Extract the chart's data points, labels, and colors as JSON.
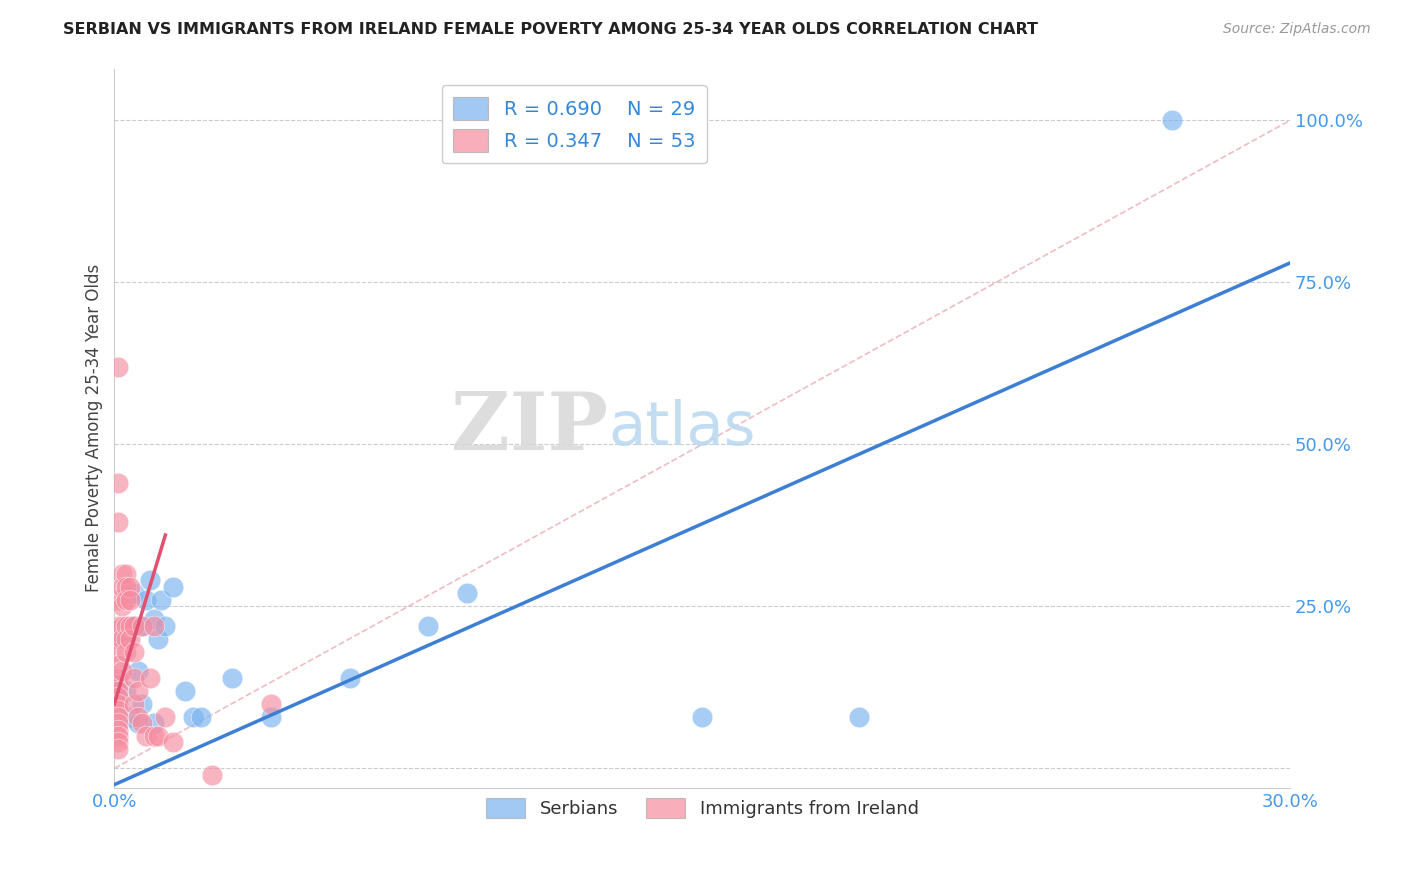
{
  "title": "SERBIAN VS IMMIGRANTS FROM IRELAND FEMALE POVERTY AMONG 25-34 YEAR OLDS CORRELATION CHART",
  "source": "Source: ZipAtlas.com",
  "ylabel": "Female Poverty Among 25-34 Year Olds",
  "xlim": [
    0.0,
    0.3
  ],
  "ylim": [
    -0.03,
    1.08
  ],
  "x_ticks": [
    0.0,
    0.05,
    0.1,
    0.15,
    0.2,
    0.25,
    0.3
  ],
  "x_tick_labels": [
    "0.0%",
    "",
    "",
    "",
    "",
    "",
    "30.0%"
  ],
  "y_ticks": [
    0.0,
    0.25,
    0.5,
    0.75,
    1.0
  ],
  "y_tick_labels": [
    "",
    "25.0%",
    "50.0%",
    "75.0%",
    "100.0%"
  ],
  "grid_color": "#cccccc",
  "background_color": "#ffffff",
  "legend_r1": "R = 0.690",
  "legend_n1": "N = 29",
  "legend_r2": "R = 0.347",
  "legend_n2": "N = 53",
  "blue_color": "#7ab3ef",
  "pink_color": "#f78ca0",
  "blue_scatter": [
    [
      0.001,
      0.13
    ],
    [
      0.002,
      0.2
    ],
    [
      0.003,
      0.12
    ],
    [
      0.004,
      0.08
    ],
    [
      0.005,
      0.22
    ],
    [
      0.005,
      0.27
    ],
    [
      0.006,
      0.07
    ],
    [
      0.006,
      0.15
    ],
    [
      0.007,
      0.22
    ],
    [
      0.007,
      0.1
    ],
    [
      0.008,
      0.26
    ],
    [
      0.009,
      0.29
    ],
    [
      0.01,
      0.23
    ],
    [
      0.01,
      0.07
    ],
    [
      0.011,
      0.2
    ],
    [
      0.012,
      0.26
    ],
    [
      0.013,
      0.22
    ],
    [
      0.015,
      0.28
    ],
    [
      0.018,
      0.12
    ],
    [
      0.02,
      0.08
    ],
    [
      0.022,
      0.08
    ],
    [
      0.03,
      0.14
    ],
    [
      0.04,
      0.08
    ],
    [
      0.06,
      0.14
    ],
    [
      0.08,
      0.22
    ],
    [
      0.09,
      0.27
    ],
    [
      0.15,
      0.08
    ],
    [
      0.19,
      0.08
    ],
    [
      0.27,
      1.0
    ]
  ],
  "pink_scatter": [
    [
      0.001,
      0.62
    ],
    [
      0.001,
      0.44
    ],
    [
      0.001,
      0.38
    ],
    [
      0.001,
      0.26
    ],
    [
      0.001,
      0.22
    ],
    [
      0.001,
      0.2
    ],
    [
      0.001,
      0.18
    ],
    [
      0.001,
      0.16
    ],
    [
      0.001,
      0.14
    ],
    [
      0.001,
      0.13
    ],
    [
      0.001,
      0.12
    ],
    [
      0.001,
      0.11
    ],
    [
      0.001,
      0.1
    ],
    [
      0.001,
      0.09
    ],
    [
      0.001,
      0.08
    ],
    [
      0.001,
      0.07
    ],
    [
      0.001,
      0.06
    ],
    [
      0.001,
      0.05
    ],
    [
      0.001,
      0.04
    ],
    [
      0.001,
      0.03
    ],
    [
      0.002,
      0.3
    ],
    [
      0.002,
      0.28
    ],
    [
      0.002,
      0.25
    ],
    [
      0.002,
      0.22
    ],
    [
      0.002,
      0.2
    ],
    [
      0.002,
      0.15
    ],
    [
      0.003,
      0.3
    ],
    [
      0.003,
      0.28
    ],
    [
      0.003,
      0.26
    ],
    [
      0.003,
      0.22
    ],
    [
      0.003,
      0.2
    ],
    [
      0.003,
      0.18
    ],
    [
      0.004,
      0.28
    ],
    [
      0.004,
      0.26
    ],
    [
      0.004,
      0.22
    ],
    [
      0.004,
      0.2
    ],
    [
      0.005,
      0.22
    ],
    [
      0.005,
      0.18
    ],
    [
      0.005,
      0.14
    ],
    [
      0.005,
      0.1
    ],
    [
      0.006,
      0.12
    ],
    [
      0.006,
      0.08
    ],
    [
      0.007,
      0.22
    ],
    [
      0.007,
      0.07
    ],
    [
      0.008,
      0.05
    ],
    [
      0.009,
      0.14
    ],
    [
      0.01,
      0.22
    ],
    [
      0.01,
      0.05
    ],
    [
      0.011,
      0.05
    ],
    [
      0.013,
      0.08
    ],
    [
      0.015,
      0.04
    ],
    [
      0.025,
      -0.01
    ],
    [
      0.04,
      0.1
    ]
  ],
  "blue_line_x": [
    0.0,
    0.3
  ],
  "blue_line_y": [
    -0.025,
    0.78
  ],
  "pink_line_x": [
    0.0,
    0.013
  ],
  "pink_line_y": [
    0.1,
    0.36
  ],
  "ref_line_x": [
    0.0,
    0.3
  ],
  "ref_line_y": [
    0.0,
    1.0
  ]
}
